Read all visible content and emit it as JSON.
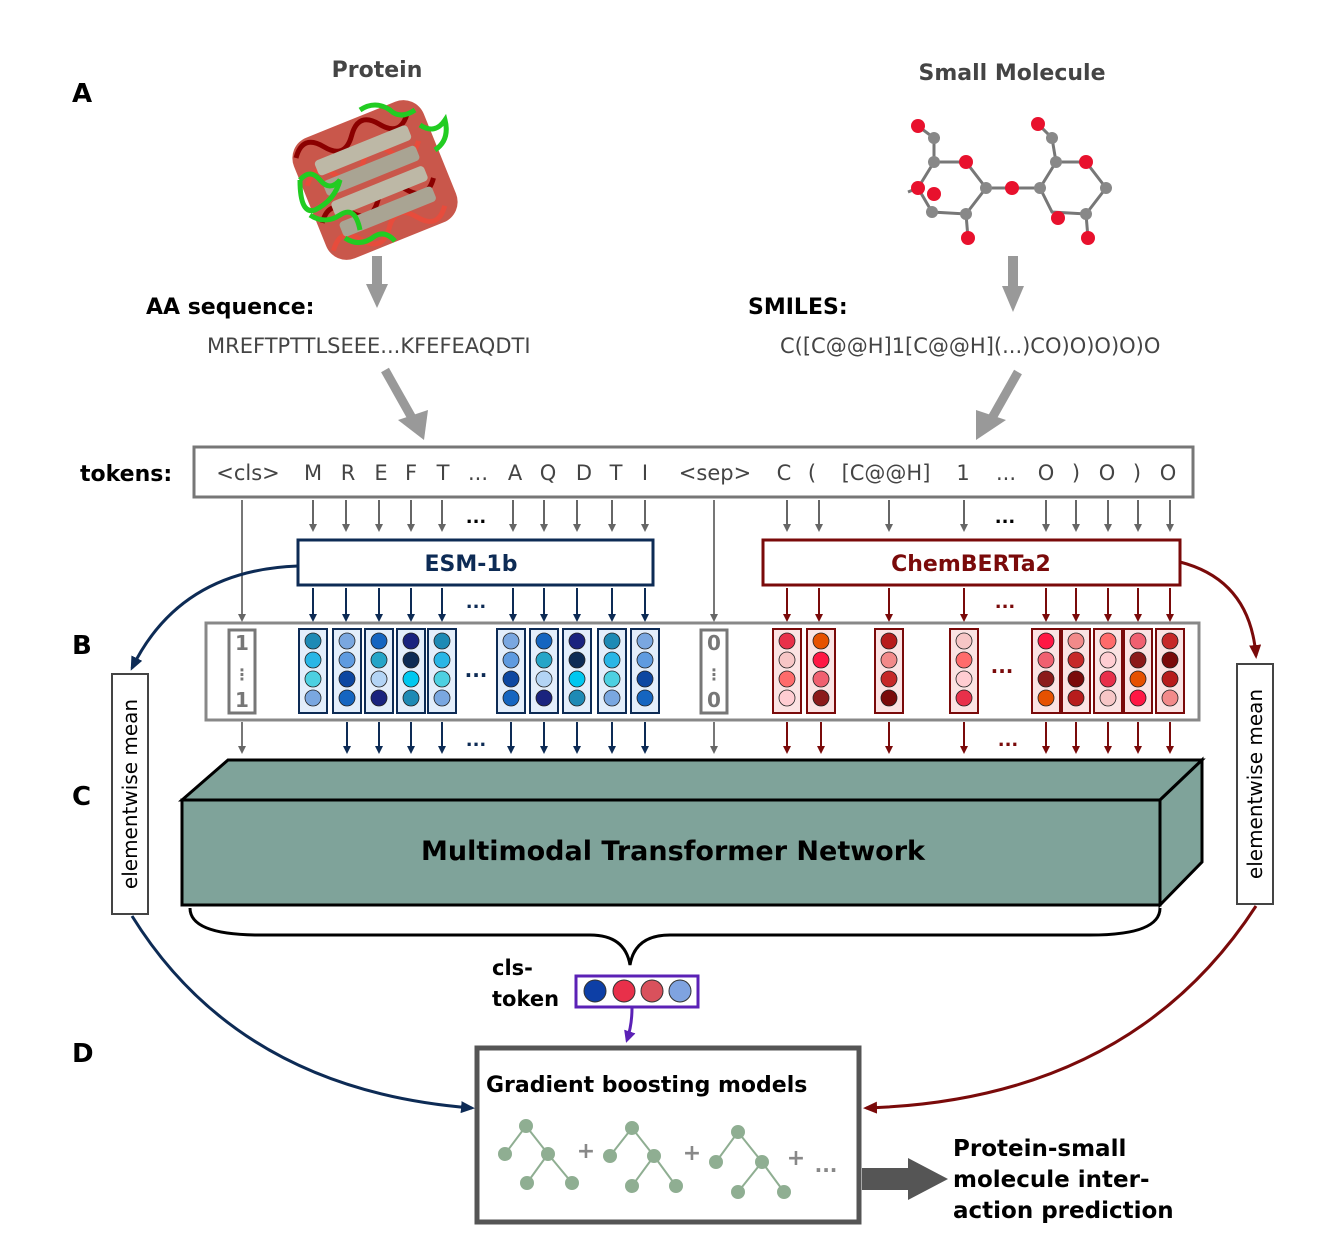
{
  "sections": {
    "a": "A",
    "b": "B",
    "c": "C",
    "d": "D"
  },
  "protein": {
    "title": "Protein",
    "seq_label": "AA sequence:",
    "sequence": "MREFTPTTLSEEE...KFEFEAQDTI"
  },
  "molecule": {
    "title": "Small Molecule",
    "smiles_label": "SMILES:",
    "smiles": "C([C@@H]1[C@@H](...)CO)O)O)O)O"
  },
  "tokens": {
    "label": "tokens:",
    "items": [
      "<cls>",
      "M",
      "R",
      "E",
      "F",
      "T",
      "...",
      "A",
      "Q",
      "D",
      "T",
      "I",
      "<sep>",
      "C",
      "(",
      "[C@@H]",
      "1",
      "...",
      "O",
      ")",
      "O",
      ")",
      "O"
    ]
  },
  "encoders": {
    "protein": "ESM-1b",
    "molecule": "ChemBERTa2"
  },
  "cls_vector": {
    "top": "1",
    "bottom": "1"
  },
  "sep_vector": {
    "top": "0",
    "bottom": "0"
  },
  "ellipsis": "...",
  "mean_label": "elementwise mean",
  "transformer": "Multimodal Transformer Network",
  "cls_token": {
    "line1": "cls-",
    "line2": "token"
  },
  "gbm": {
    "title": "Gradient boosting models",
    "plus": "+",
    "ellipsis": "..."
  },
  "output": {
    "line1": "Protein-small",
    "line2": "molecule inter-",
    "line3": "action prediction"
  },
  "colors": {
    "protein_dark": "#0d2b55",
    "molecule_dark": "#7a0a0a",
    "transformer_fill": "#7fa39a",
    "gray_arrow": "#999999",
    "box_gray": "#777777",
    "cls_border": "#5b21b6",
    "tree_green": "#8fae92"
  }
}
